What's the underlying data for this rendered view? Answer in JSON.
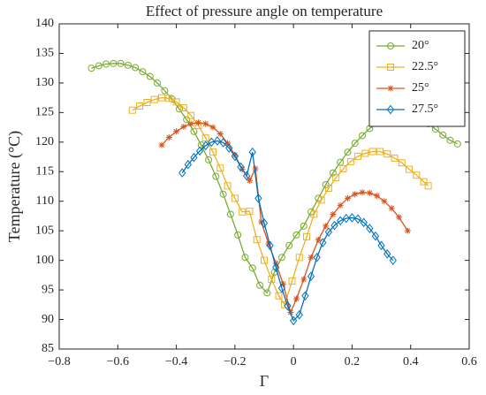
{
  "chart_data": {
    "type": "line",
    "title": "Effect of pressure angle on temperature",
    "xlabel": "Γ",
    "ylabel": "Temperature (°C)",
    "xlim": [
      -0.8,
      0.6
    ],
    "xticks": [
      {
        "value": -0.8,
        "label": "−0.8"
      },
      {
        "value": -0.6,
        "label": "−0.6"
      },
      {
        "value": -0.4,
        "label": "−0.4"
      },
      {
        "value": -0.2,
        "label": "−0.2"
      },
      0,
      0.2,
      0.4,
      0.6
    ],
    "ylim": [
      85,
      140
    ],
    "yticks": [
      85,
      90,
      95,
      100,
      105,
      110,
      115,
      120,
      125,
      130,
      135,
      140
    ],
    "legend": "upper right",
    "series": [
      {
        "name": "20°",
        "color": "#77ac30",
        "marker": "circle",
        "x": [
          -0.69,
          -0.665,
          -0.64,
          -0.615,
          -0.59,
          -0.565,
          -0.54,
          -0.515,
          -0.49,
          -0.465,
          -0.44,
          -0.415,
          -0.39,
          -0.365,
          -0.34,
          -0.315,
          -0.29,
          -0.265,
          -0.24,
          -0.215,
          -0.19,
          -0.165,
          -0.14,
          -0.115,
          -0.09,
          -0.065,
          -0.04,
          -0.015,
          0.01,
          0.035,
          0.06,
          0.085,
          0.11,
          0.135,
          0.16,
          0.185,
          0.21,
          0.235,
          0.26,
          0.285,
          0.31,
          0.335,
          0.36,
          0.385,
          0.41,
          0.435,
          0.46,
          0.485,
          0.51,
          0.535,
          0.56
        ],
        "values": [
          132.5,
          132.9,
          133.2,
          133.3,
          133.3,
          133.0,
          132.6,
          131.9,
          131.1,
          130.0,
          128.7,
          127.3,
          125.6,
          123.8,
          121.8,
          119.5,
          117.0,
          114.2,
          111.2,
          107.8,
          104.3,
          100.5,
          98.7,
          95.8,
          94.5,
          98.0,
          100.5,
          102.5,
          104.3,
          105.8,
          108.2,
          110.5,
          112.8,
          114.8,
          116.6,
          118.3,
          119.8,
          121.1,
          122.3,
          123.2,
          124.0,
          124.5,
          124.8,
          124.7,
          124.4,
          123.9,
          123.1,
          122.2,
          121.2,
          120.3,
          119.7
        ]
      },
      {
        "name": "22.5°",
        "color": "#edb120",
        "marker": "square",
        "x": [
          -0.55,
          -0.525,
          -0.5,
          -0.475,
          -0.45,
          -0.425,
          -0.4,
          -0.375,
          -0.35,
          -0.325,
          -0.3,
          -0.275,
          -0.25,
          -0.225,
          -0.2,
          -0.175,
          -0.15,
          -0.125,
          -0.1,
          -0.075,
          -0.05,
          -0.03,
          -0.005,
          0.02,
          0.045,
          0.07,
          0.095,
          0.12,
          0.145,
          0.17,
          0.195,
          0.22,
          0.245,
          0.27,
          0.295,
          0.32,
          0.345,
          0.37,
          0.395,
          0.42,
          0.445,
          0.46
        ],
        "values": [
          125.4,
          126.1,
          126.7,
          127.2,
          127.5,
          127.4,
          126.8,
          125.8,
          124.5,
          122.8,
          120.7,
          118.3,
          115.6,
          112.6,
          110.5,
          108.2,
          108.3,
          103.5,
          100.0,
          96.8,
          94.0,
          92.5,
          96.5,
          100.5,
          104.0,
          107.8,
          110.2,
          112.2,
          114.0,
          115.5,
          116.7,
          117.6,
          118.1,
          118.4,
          118.4,
          118.0,
          117.3,
          116.5,
          115.4,
          114.4,
          113.3,
          112.6
        ]
      },
      {
        "name": "25°",
        "color": "#d95319",
        "marker": "asterisk",
        "x": [
          -0.45,
          -0.425,
          -0.4,
          -0.375,
          -0.35,
          -0.325,
          -0.3,
          -0.275,
          -0.25,
          -0.225,
          -0.2,
          -0.175,
          -0.15,
          -0.13,
          -0.11,
          -0.085,
          -0.06,
          -0.035,
          -0.01,
          0.01,
          0.035,
          0.06,
          0.085,
          0.11,
          0.135,
          0.16,
          0.185,
          0.21,
          0.235,
          0.26,
          0.285,
          0.31,
          0.335,
          0.36,
          0.39
        ],
        "values": [
          119.5,
          120.8,
          121.8,
          122.6,
          123.1,
          123.3,
          123.1,
          122.5,
          121.4,
          119.8,
          117.8,
          115.4,
          113.5,
          115.5,
          106.5,
          102.8,
          99.5,
          96.0,
          91.2,
          93.5,
          96.8,
          100.5,
          103.5,
          105.8,
          107.8,
          109.3,
          110.5,
          111.2,
          111.5,
          111.4,
          110.9,
          110.0,
          108.8,
          107.3,
          105.0
        ]
      },
      {
        "name": "27.5°",
        "color": "#0072bd",
        "marker": "diamond",
        "x": [
          -0.38,
          -0.36,
          -0.34,
          -0.32,
          -0.3,
          -0.28,
          -0.26,
          -0.24,
          -0.22,
          -0.2,
          -0.18,
          -0.16,
          -0.14,
          -0.12,
          -0.1,
          -0.08,
          -0.06,
          -0.04,
          -0.02,
          0.0,
          0.02,
          0.04,
          0.06,
          0.08,
          0.1,
          0.12,
          0.14,
          0.16,
          0.18,
          0.2,
          0.22,
          0.24,
          0.26,
          0.28,
          0.3,
          0.32,
          0.34
        ],
        "values": [
          114.8,
          116.2,
          117.4,
          118.5,
          119.4,
          120.0,
          120.2,
          119.9,
          119.0,
          117.6,
          115.8,
          114.3,
          118.3,
          110.5,
          106.3,
          102.5,
          98.8,
          95.3,
          92.3,
          89.8,
          90.8,
          94.0,
          97.3,
          100.5,
          103.0,
          104.8,
          105.9,
          106.7,
          107.1,
          107.2,
          107.0,
          106.4,
          105.4,
          104.1,
          102.5,
          101.1,
          100.0
        ]
      }
    ]
  }
}
